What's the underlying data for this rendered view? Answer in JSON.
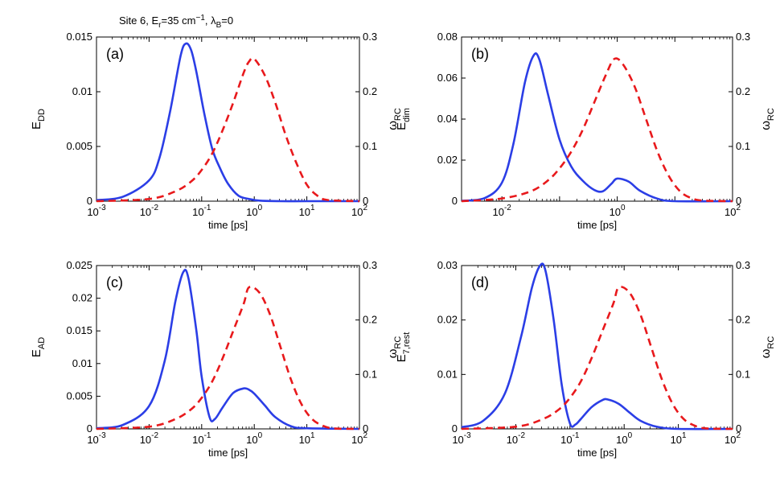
{
  "suptitle": {
    "site": "Site 6, E",
    "er_sub": "r",
    "er_val": "=35 cm",
    "er_exp": "−1",
    "lambda": ",  λ",
    "lambda_sub": "B",
    "lambda_val": "=0"
  },
  "colors": {
    "solid": "#2b3ee6",
    "dashed": "#e8191c"
  },
  "chart_data": [
    {
      "type": "line",
      "panel_label": "(a)",
      "xlabel": "time [ps]",
      "xscale": "log",
      "xlim_exp": [
        -3,
        2
      ],
      "x_tick_exps": [
        -3,
        -2,
        -1,
        0,
        1,
        2
      ],
      "x_tick_label_exps": [
        -3,
        -2,
        -1,
        0,
        1,
        2
      ],
      "ylabel_main": "E",
      "ylabel_sub": "DD",
      "ylim": [
        0,
        0.015
      ],
      "y_ticks": [
        0,
        0.005,
        0.01,
        0.015
      ],
      "y_tick_labels": [
        "0",
        "0.005",
        "0.01",
        "0.015"
      ],
      "y2label_main": "ω",
      "y2label_sub": "RC",
      "y2lim": [
        0,
        0.3
      ],
      "y2_ticks": [
        0,
        0.1,
        0.2,
        0.3
      ],
      "y2_tick_labels": [
        "0",
        "0.1",
        "0.2",
        "0.3"
      ],
      "series": [
        {
          "name": "E_DD",
          "style": "solid",
          "axis": "left",
          "log10_x": [
            -3.0,
            -2.5,
            -2.0,
            -1.8,
            -1.6,
            -1.4,
            -1.3,
            -1.2,
            -1.1,
            -0.95,
            -0.8,
            -0.65,
            -0.5,
            -0.3,
            -0.1,
            0.1,
            0.5,
            1.0,
            2.0
          ],
          "y": [
            0.0001,
            0.0004,
            0.0019,
            0.004,
            0.0082,
            0.0133,
            0.0144,
            0.0138,
            0.0118,
            0.008,
            0.0048,
            0.003,
            0.0016,
            0.0005,
            0.0002,
            5e-05,
            0,
            0,
            0
          ]
        },
        {
          "name": "omega_RC",
          "style": "dashed",
          "axis": "right",
          "log10_x": [
            -3.0,
            -2.0,
            -1.5,
            -1.2,
            -1.0,
            -0.8,
            -0.6,
            -0.4,
            -0.2,
            0.0,
            -0.1,
            0.2,
            0.4,
            0.6,
            0.8,
            1.0,
            1.2,
            1.4,
            2.0
          ],
          "y": [
            0,
            0.004,
            0.018,
            0.036,
            0.057,
            0.087,
            0.13,
            0.18,
            0.235,
            0.26,
            0.255,
            0.23,
            0.18,
            0.12,
            0.07,
            0.03,
            0.01,
            0.002,
            0
          ]
        }
      ]
    },
    {
      "type": "line",
      "panel_label": "(b)",
      "xlabel": "time [ps]",
      "xscale": "log",
      "xlim_exp": [
        -2.7,
        2
      ],
      "x_tick_exps": [
        -2,
        -1,
        0,
        1,
        2
      ],
      "x_tick_label_exps": [
        -2,
        0,
        2
      ],
      "ylabel_main": "E",
      "ylabel_sub": "dim",
      "ylim": [
        0,
        0.08
      ],
      "y_ticks": [
        0,
        0.02,
        0.04,
        0.06,
        0.08
      ],
      "y_tick_labels": [
        "0",
        "0.02",
        "0.04",
        "0.06",
        "0.08"
      ],
      "y2label_main": "ω",
      "y2label_sub": "RC",
      "y2lim": [
        0,
        0.3
      ],
      "y2_ticks": [
        0,
        0.1,
        0.2,
        0.3
      ],
      "y2_tick_labels": [
        "0",
        "0.1",
        "0.2",
        "0.3"
      ],
      "series": [
        {
          "name": "E_dim",
          "style": "solid",
          "axis": "left",
          "log10_x": [
            -2.7,
            -2.3,
            -2.0,
            -1.8,
            -1.6,
            -1.45,
            -1.35,
            -1.2,
            -1.0,
            -0.8,
            -0.6,
            -0.4,
            -0.25,
            -0.1,
            0.0,
            0.2,
            0.4,
            0.7,
            1.0,
            2.0
          ],
          "y": [
            0.0002,
            0.0015,
            0.009,
            0.028,
            0.058,
            0.071,
            0.069,
            0.052,
            0.03,
            0.017,
            0.01,
            0.0055,
            0.0048,
            0.0085,
            0.011,
            0.0095,
            0.005,
            0.0012,
            0,
            0
          ]
        },
        {
          "name": "omega_RC",
          "style": "dashed",
          "axis": "right",
          "log10_x": [
            -2.7,
            -2.0,
            -1.5,
            -1.2,
            -1.0,
            -0.8,
            -0.6,
            -0.4,
            -0.2,
            -0.05,
            0.1,
            0.3,
            0.5,
            0.7,
            0.9,
            1.1,
            1.3,
            1.5,
            2.0
          ],
          "y": [
            0,
            0.005,
            0.018,
            0.038,
            0.06,
            0.09,
            0.13,
            0.18,
            0.23,
            0.26,
            0.25,
            0.21,
            0.15,
            0.09,
            0.045,
            0.017,
            0.005,
            0.001,
            0
          ]
        }
      ]
    },
    {
      "type": "line",
      "panel_label": "(c)",
      "xlabel": "time [ps]",
      "xscale": "log",
      "xlim_exp": [
        -3,
        2
      ],
      "x_tick_exps": [
        -3,
        -2,
        -1,
        0,
        1,
        2
      ],
      "x_tick_label_exps": [
        -3,
        -2,
        -1,
        0,
        1,
        2
      ],
      "ylabel_main": "E",
      "ylabel_sub": "AD",
      "ylim": [
        0,
        0.025
      ],
      "y_ticks": [
        0,
        0.005,
        0.01,
        0.015,
        0.02,
        0.025
      ],
      "y_tick_labels": [
        "0",
        "0.005",
        "0.01",
        "0.015",
        "0.02",
        "0.025"
      ],
      "y2label_main": "ω",
      "y2label_sub": "RC",
      "y2lim": [
        0,
        0.3
      ],
      "y2_ticks": [
        0,
        0.1,
        0.2,
        0.3
      ],
      "y2_tick_labels": [
        "0",
        "0.1",
        "0.2",
        "0.3"
      ],
      "series": [
        {
          "name": "E_AD",
          "style": "solid",
          "axis": "left",
          "log10_x": [
            -3.0,
            -2.5,
            -2.0,
            -1.7,
            -1.5,
            -1.35,
            -1.25,
            -1.1,
            -1.0,
            -0.85,
            -0.75,
            -0.6,
            -0.4,
            -0.2,
            -0.1,
            0.0,
            0.2,
            0.4,
            0.7,
            1.0,
            2.0
          ],
          "y": [
            0.0001,
            0.0006,
            0.0035,
            0.0105,
            0.0195,
            0.024,
            0.023,
            0.015,
            0.008,
            0.0018,
            0.0015,
            0.0033,
            0.0055,
            0.0062,
            0.006,
            0.0054,
            0.0036,
            0.0018,
            0.0004,
            0.0001,
            0
          ]
        },
        {
          "name": "omega_RC",
          "style": "dashed",
          "axis": "right",
          "log10_x": [
            -3.0,
            -2.0,
            -1.5,
            -1.2,
            -1.0,
            -0.8,
            -0.6,
            -0.4,
            -0.2,
            -0.1,
            0.1,
            0.3,
            0.5,
            0.7,
            0.9,
            1.1,
            1.3,
            1.5,
            2.0
          ],
          "y": [
            0,
            0.004,
            0.018,
            0.036,
            0.057,
            0.087,
            0.13,
            0.18,
            0.23,
            0.26,
            0.25,
            0.21,
            0.15,
            0.09,
            0.045,
            0.018,
            0.006,
            0.001,
            0
          ]
        }
      ]
    },
    {
      "type": "line",
      "panel_label": "(d)",
      "xlabel": "time [ps]",
      "xscale": "log",
      "xlim_exp": [
        -3,
        2
      ],
      "x_tick_exps": [
        -3,
        -2,
        -1,
        0,
        1,
        2
      ],
      "x_tick_label_exps": [
        -3,
        -2,
        -1,
        0,
        1,
        2
      ],
      "ylabel_main": "E",
      "ylabel_sub": "7,rest",
      "ylim": [
        0,
        0.03
      ],
      "y_ticks": [
        0,
        0.01,
        0.02,
        0.03
      ],
      "y_tick_labels": [
        "0",
        "0.01",
        "0.02",
        "0.03"
      ],
      "y2label_main": "ω",
      "y2label_sub": "RC",
      "y2lim": [
        0,
        0.3
      ],
      "y2_ticks": [
        0,
        0.1,
        0.2,
        0.3
      ],
      "y2_tick_labels": [
        "0",
        "0.1",
        "0.2",
        "0.3"
      ],
      "series": [
        {
          "name": "E_7rest",
          "style": "solid",
          "axis": "left",
          "log10_x": [
            -3.0,
            -2.6,
            -2.2,
            -1.9,
            -1.7,
            -1.55,
            -1.45,
            -1.3,
            -1.15,
            -1.0,
            -0.9,
            -0.8,
            -0.6,
            -0.4,
            -0.3,
            -0.1,
            0.1,
            0.3,
            0.6,
            1.0,
            2.0
          ],
          "y": [
            0.0003,
            0.0015,
            0.0065,
            0.017,
            0.026,
            0.03,
            0.029,
            0.02,
            0.008,
            0.001,
            0.0008,
            0.0018,
            0.004,
            0.0053,
            0.0054,
            0.0046,
            0.003,
            0.0015,
            0.0004,
            0,
            0
          ]
        },
        {
          "name": "omega_RC",
          "style": "dashed",
          "axis": "right",
          "log10_x": [
            -3.0,
            -2.0,
            -1.5,
            -1.2,
            -1.0,
            -0.8,
            -0.6,
            -0.4,
            -0.2,
            -0.1,
            0.1,
            0.3,
            0.5,
            0.7,
            0.9,
            1.1,
            1.3,
            1.5,
            2.0
          ],
          "y": [
            0,
            0.004,
            0.018,
            0.036,
            0.057,
            0.087,
            0.13,
            0.18,
            0.23,
            0.26,
            0.25,
            0.21,
            0.15,
            0.09,
            0.045,
            0.018,
            0.006,
            0.001,
            0
          ]
        }
      ]
    }
  ]
}
